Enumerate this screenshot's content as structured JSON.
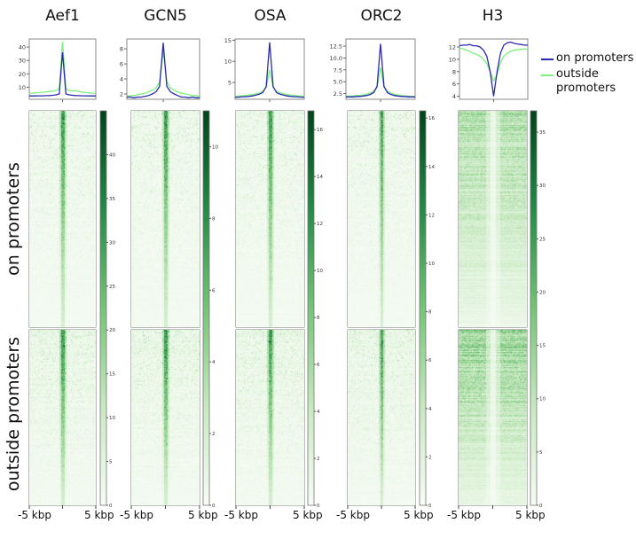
{
  "row_labels": [
    "on promoters",
    "outside promoters"
  ],
  "legend": {
    "items": [
      {
        "label": "on promoters",
        "color": "#2a2ab0"
      },
      {
        "label": "outside promoters",
        "color": "#7cf07c"
      }
    ]
  },
  "xaxis_labels": {
    "left": "-5 kbp",
    "right": "5 kbp"
  },
  "colormap": [
    "#f7fcf5",
    "#c7e9c0",
    "#74c476",
    "#238b45",
    "#00441b"
  ],
  "chart_data": [
    {
      "type": "line+heatmap",
      "title": "Aef1",
      "profile_ylim": [
        1,
        46
      ],
      "profile_yticks": [
        "10",
        "20",
        "30",
        "40"
      ],
      "x": [
        -5,
        -4.5,
        -4,
        -3.5,
        -3,
        -2.5,
        -2,
        -1.5,
        -1,
        -0.5,
        0,
        0.5,
        1,
        1.5,
        2,
        2.5,
        3,
        3.5,
        4,
        4.5,
        5
      ],
      "series": [
        {
          "name": "on promoters",
          "values": [
            3.5,
            3.5,
            3.5,
            3.6,
            3.6,
            3.7,
            3.8,
            4,
            4.3,
            5,
            36,
            5,
            4.3,
            4,
            3.8,
            3.7,
            3.6,
            3.6,
            3.5,
            3.5,
            3.5
          ]
        },
        {
          "name": "outside promoters",
          "values": [
            5.5,
            5.6,
            5.8,
            6,
            6.2,
            6.5,
            6.8,
            7,
            7.5,
            9,
            44,
            9,
            7.5,
            7.2,
            7.4,
            6.8,
            6.3,
            6,
            5.8,
            5.6,
            5.5
          ]
        }
      ],
      "colorbar_range": [
        0,
        45
      ],
      "colorbar_ticks": [
        "0",
        "5",
        "10",
        "15",
        "20",
        "25",
        "30",
        "35",
        "40"
      ]
    },
    {
      "type": "line+heatmap",
      "title": "GCN5",
      "profile_ylim": [
        1.3,
        9.3
      ],
      "profile_yticks": [
        "2",
        "4",
        "6",
        "8"
      ],
      "x": [
        -5,
        -4.5,
        -4,
        -3.5,
        -3,
        -2.5,
        -2,
        -1.5,
        -1,
        -0.5,
        0,
        0.5,
        1,
        1.5,
        2,
        2.5,
        3,
        3.5,
        4,
        4.5,
        5
      ],
      "series": [
        {
          "name": "on promoters",
          "values": [
            1.6,
            1.6,
            1.5,
            1.6,
            1.6,
            1.7,
            1.8,
            2,
            2.3,
            3,
            8.8,
            3,
            2.3,
            2,
            1.8,
            1.6,
            1.6,
            1.5,
            1.6,
            1.5,
            1.5
          ]
        },
        {
          "name": "outside promoters",
          "values": [
            1.7,
            1.8,
            1.8,
            1.9,
            2,
            2.1,
            2.3,
            2.5,
            2.8,
            3.6,
            7.8,
            3.6,
            2.8,
            2.5,
            2.3,
            2.1,
            2,
            1.9,
            1.8,
            1.8,
            1.7
          ]
        }
      ],
      "colorbar_range": [
        0,
        11
      ],
      "colorbar_ticks": [
        "0",
        "2",
        "4",
        "6",
        "8",
        "10"
      ]
    },
    {
      "type": "line+heatmap",
      "title": "OSA",
      "profile_ylim": [
        1,
        15.3
      ],
      "profile_yticks": [
        "5",
        "10",
        "15"
      ],
      "x": [
        -5,
        -4.5,
        -4,
        -3.5,
        -3,
        -2.5,
        -2,
        -1.5,
        -1,
        -0.5,
        0,
        0.5,
        1,
        1.5,
        2,
        2.5,
        3,
        3.5,
        4,
        4.5,
        5
      ],
      "series": [
        {
          "name": "on promoters",
          "values": [
            1.5,
            1.5,
            1.6,
            1.6,
            1.7,
            1.8,
            2,
            2.2,
            2.6,
            4,
            14.5,
            4,
            2.6,
            2.2,
            2,
            1.8,
            1.7,
            1.6,
            1.6,
            1.5,
            1.5
          ]
        },
        {
          "name": "outside promoters",
          "values": [
            1.7,
            1.8,
            1.8,
            1.9,
            2,
            2.1,
            2.3,
            2.5,
            2.9,
            3.8,
            8,
            3.8,
            2.9,
            2.5,
            2.3,
            2.1,
            2,
            1.9,
            1.8,
            1.8,
            1.7
          ]
        }
      ],
      "colorbar_range": [
        0,
        16.8
      ],
      "colorbar_ticks": [
        "0",
        "2",
        "4",
        "6",
        "8",
        "10",
        "12",
        "14",
        "16"
      ]
    },
    {
      "type": "line+heatmap",
      "title": "ORC2",
      "profile_ylim": [
        1.3,
        14
      ],
      "profile_yticks": [
        "2.5",
        "5.0",
        "7.5",
        "10.0",
        "12.5"
      ],
      "x": [
        -5,
        -4.5,
        -4,
        -3.5,
        -3,
        -2.5,
        -2,
        -1.5,
        -1,
        -0.5,
        0,
        0.5,
        1,
        1.5,
        2,
        2.5,
        3,
        3.5,
        4,
        4.5,
        5
      ],
      "series": [
        {
          "name": "on promoters",
          "values": [
            1.8,
            1.8,
            1.8,
            1.9,
            1.9,
            2,
            2.1,
            2.3,
            2.7,
            4,
            13,
            4,
            2.7,
            2.3,
            2.1,
            2,
            1.9,
            1.9,
            1.8,
            1.8,
            1.8
          ]
        },
        {
          "name": "outside promoters",
          "values": [
            1.9,
            2,
            2,
            2.1,
            2.1,
            2.2,
            2.4,
            2.6,
            3,
            3.8,
            8,
            3.8,
            3,
            2.6,
            2.4,
            2.2,
            2.1,
            2,
            2,
            1.9,
            1.9
          ]
        }
      ],
      "colorbar_range": [
        0,
        16.3
      ],
      "colorbar_ticks": [
        "0",
        "2",
        "4",
        "6",
        "8",
        "10",
        "12",
        "14",
        "16"
      ]
    },
    {
      "type": "line+heatmap",
      "title": "H3",
      "profile_ylim": [
        3.5,
        13.3
      ],
      "profile_yticks": [
        "4",
        "6",
        "8",
        "10",
        "12"
      ],
      "x": [
        -5,
        -4.5,
        -4,
        -3.5,
        -3,
        -2.5,
        -2,
        -1.5,
        -1,
        -0.5,
        0,
        0.5,
        1,
        1.5,
        2,
        2.5,
        3,
        3.5,
        4,
        4.5,
        5
      ],
      "series": [
        {
          "name": "on promoters",
          "values": [
            12.2,
            12.3,
            12.3,
            12.4,
            12.2,
            12.2,
            12,
            11.5,
            10.5,
            8,
            4,
            8,
            11,
            12.3,
            12.7,
            12.8,
            12.6,
            12.5,
            12.4,
            12.3,
            12.3
          ]
        },
        {
          "name": "outside promoters",
          "values": [
            11.8,
            11.7,
            11.5,
            11.3,
            11,
            10.8,
            10.5,
            10,
            9.3,
            8,
            6.5,
            7.5,
            9.5,
            10.5,
            11,
            11.3,
            11.5,
            11.6,
            11.6,
            11.7,
            11.6
          ]
        }
      ],
      "colorbar_range": [
        0,
        37
      ],
      "colorbar_ticks": [
        "0",
        "5",
        "10",
        "15",
        "20",
        "25",
        "30",
        "35"
      ]
    }
  ]
}
